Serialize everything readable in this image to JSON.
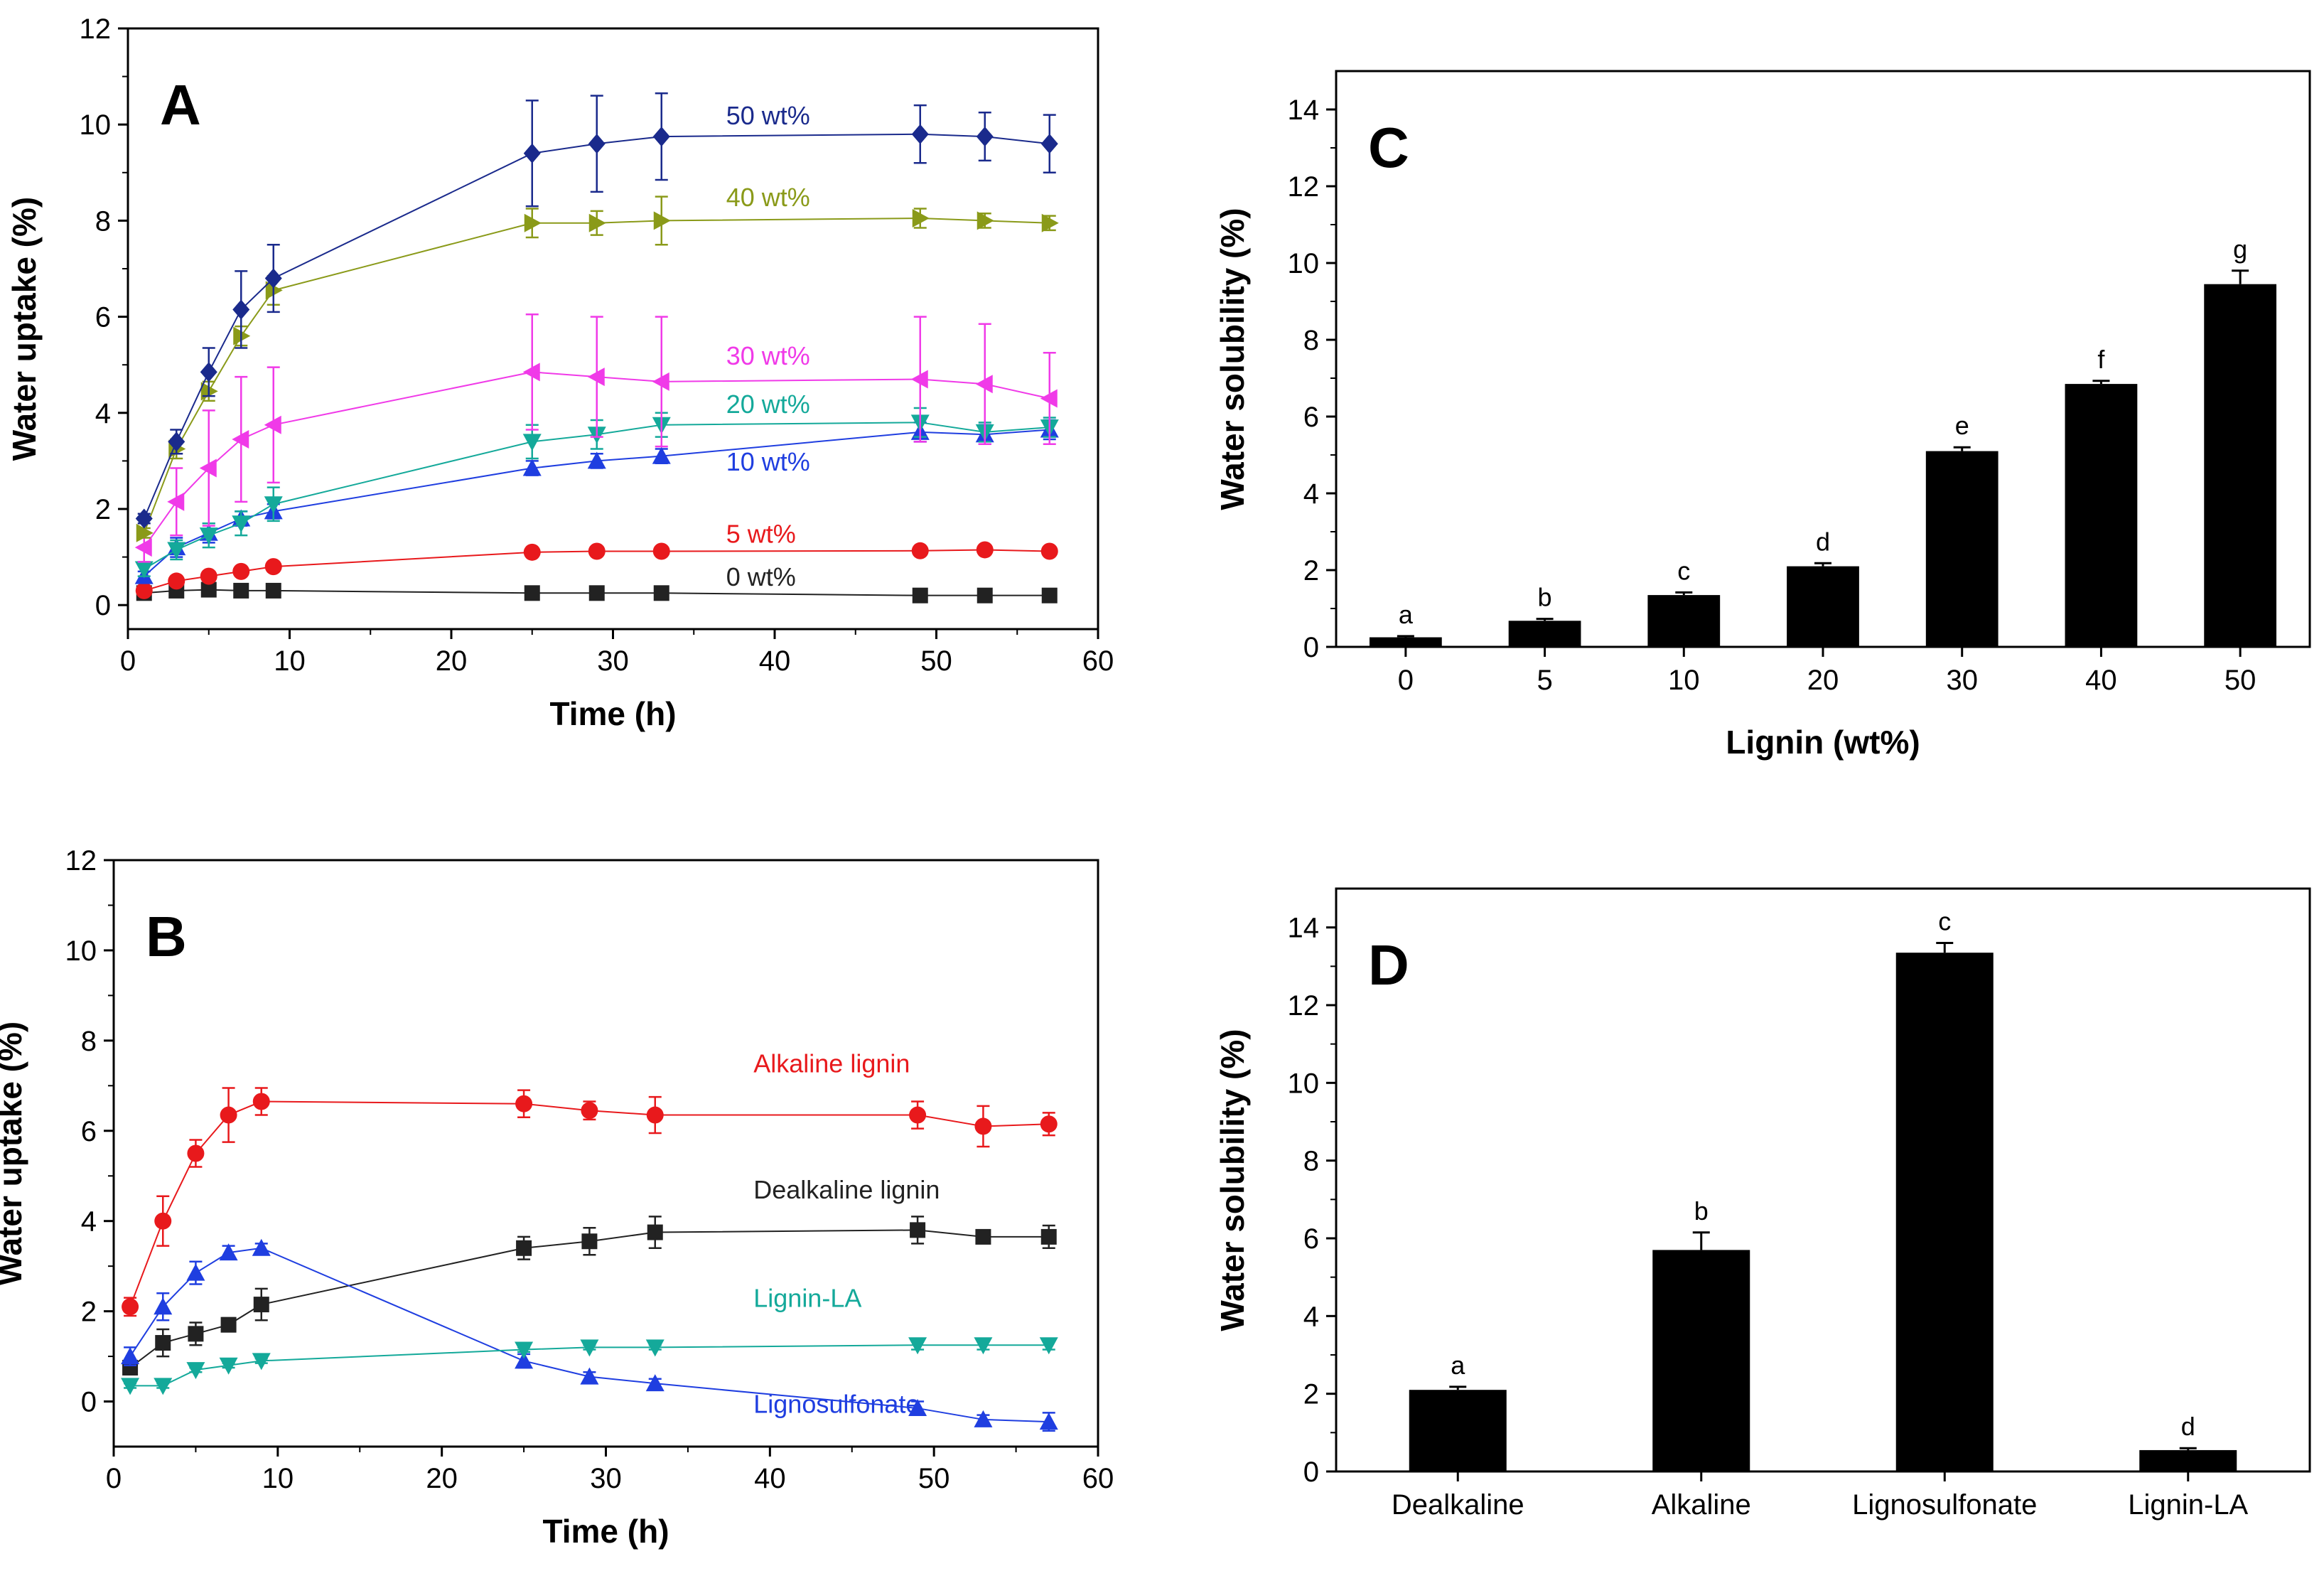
{
  "chart_data": [
    {
      "panel": "A",
      "type": "line",
      "xlabel": "Time (h)",
      "ylabel": "Water uptake (%)",
      "xlim": [
        0,
        60
      ],
      "ylim": [
        -0.5,
        12
      ],
      "xticks": [
        0,
        10,
        20,
        30,
        40,
        50,
        60
      ],
      "yticks": [
        0,
        2,
        4,
        6,
        8,
        10,
        12
      ],
      "x": [
        1,
        3,
        5,
        7,
        9,
        25,
        29,
        33,
        49,
        53,
        57
      ],
      "series": [
        {
          "name": "0 wt%",
          "color": "#222222",
          "marker": "square",
          "values": [
            0.25,
            0.3,
            0.32,
            0.3,
            0.3,
            0.25,
            0.25,
            0.25,
            0.2,
            0.2,
            0.2
          ],
          "errors": [
            0.05,
            0.05,
            0.05,
            0.05,
            0.05,
            0.05,
            0.05,
            0.05,
            0.05,
            0.05,
            0.05
          ]
        },
        {
          "name": "5 wt%",
          "color": "#e8191c",
          "marker": "circle",
          "values": [
            0.3,
            0.5,
            0.6,
            0.7,
            0.8,
            1.1,
            1.12,
            1.12,
            1.13,
            1.15,
            1.12
          ],
          "errors": [
            0.05,
            0.05,
            0.05,
            0.05,
            0.05,
            0.05,
            0.05,
            0.05,
            0.05,
            0.05,
            0.05
          ]
        },
        {
          "name": "10 wt%",
          "color": "#1f3ee0",
          "marker": "triangle-up",
          "values": [
            0.6,
            1.2,
            1.5,
            1.8,
            1.95,
            2.85,
            3.0,
            3.1,
            3.6,
            3.55,
            3.65
          ],
          "errors": [
            0.1,
            0.2,
            0.2,
            0.15,
            0.15,
            0.15,
            0.15,
            0.15,
            0.2,
            0.2,
            0.2
          ]
        },
        {
          "name": "20 wt%",
          "color": "#14a99a",
          "marker": "triangle-down",
          "values": [
            0.75,
            1.15,
            1.45,
            1.7,
            2.1,
            3.4,
            3.55,
            3.75,
            3.8,
            3.6,
            3.7
          ],
          "errors": [
            0.15,
            0.2,
            0.25,
            0.25,
            0.35,
            0.35,
            0.3,
            0.25,
            0.3,
            0.2,
            0.2
          ]
        },
        {
          "name": "30 wt%",
          "color": "#f03ae8",
          "marker": "triangle-left",
          "values": [
            1.2,
            2.15,
            2.85,
            3.45,
            3.75,
            4.85,
            4.75,
            4.65,
            4.7,
            4.6,
            4.3
          ],
          "errors": [
            0.3,
            0.7,
            1.2,
            1.3,
            1.2,
            1.2,
            1.25,
            1.35,
            1.3,
            1.25,
            0.95
          ]
        },
        {
          "name": "40 wt%",
          "color": "#8a9a19",
          "marker": "triangle-right",
          "values": [
            1.5,
            3.25,
            4.45,
            5.6,
            6.55,
            7.95,
            7.95,
            8.0,
            8.05,
            8.0,
            7.95
          ],
          "errors": [
            0.1,
            0.2,
            0.2,
            0.2,
            0.3,
            0.3,
            0.25,
            0.5,
            0.2,
            0.15,
            0.15
          ]
        },
        {
          "name": "50 wt%",
          "color": "#1a2a8c",
          "marker": "diamond",
          "values": [
            1.8,
            3.4,
            4.85,
            6.15,
            6.8,
            9.4,
            9.6,
            9.75,
            9.8,
            9.75,
            9.6
          ],
          "errors": [
            0.1,
            0.25,
            0.5,
            0.8,
            0.7,
            1.1,
            1.0,
            0.9,
            0.6,
            0.5,
            0.6
          ]
        }
      ],
      "annotations": [
        {
          "text": "50 wt%",
          "color": "#1a2a8c",
          "x": 37,
          "y": 10.0
        },
        {
          "text": "40 wt%",
          "color": "#8a9a19",
          "x": 37,
          "y": 8.3
        },
        {
          "text": "30 wt%",
          "color": "#f03ae8",
          "x": 37,
          "y": 5.0
        },
        {
          "text": "20 wt%",
          "color": "#14a99a",
          "x": 37,
          "y": 4.0
        },
        {
          "text": "10 wt%",
          "color": "#1f3ee0",
          "x": 37,
          "y": 2.8
        },
        {
          "text": "5 wt%",
          "color": "#e8191c",
          "x": 37,
          "y": 1.3
        },
        {
          "text": "0 wt%",
          "color": "#222222",
          "x": 37,
          "y": 0.4
        }
      ]
    },
    {
      "panel": "B",
      "type": "line",
      "xlabel": "Time (h)",
      "ylabel": "Water uptake (%)",
      "xlim": [
        0,
        60
      ],
      "ylim": [
        -1,
        12
      ],
      "xticks": [
        0,
        10,
        20,
        30,
        40,
        50,
        60
      ],
      "yticks": [
        0,
        2,
        4,
        6,
        8,
        10,
        12
      ],
      "x": [
        1,
        3,
        5,
        7,
        9,
        25,
        29,
        33,
        49,
        53,
        57
      ],
      "series": [
        {
          "name": "Alkaline lignin",
          "color": "#e8191c",
          "marker": "circle",
          "values": [
            2.1,
            4.0,
            5.5,
            6.35,
            6.65,
            6.6,
            6.45,
            6.35,
            6.35,
            6.1,
            6.15
          ],
          "errors": [
            0.2,
            0.55,
            0.3,
            0.6,
            0.3,
            0.3,
            0.2,
            0.4,
            0.3,
            0.45,
            0.25
          ]
        },
        {
          "name": "Dealkaline lignin",
          "color": "#222222",
          "marker": "square",
          "values": [
            0.75,
            1.3,
            1.5,
            1.7,
            2.15,
            3.4,
            3.55,
            3.75,
            3.8,
            3.65,
            3.65
          ],
          "errors": [
            0.15,
            0.3,
            0.25,
            0.15,
            0.35,
            0.25,
            0.3,
            0.35,
            0.3,
            0.1,
            0.25
          ]
        },
        {
          "name": "Lignosulfonate",
          "color": "#1f3ee0",
          "marker": "triangle-up",
          "values": [
            1.0,
            2.1,
            2.85,
            3.3,
            3.4,
            0.9,
            0.55,
            0.4,
            -0.15,
            -0.4,
            -0.45
          ],
          "errors": [
            0.2,
            0.3,
            0.25,
            0.15,
            0.1,
            0.15,
            0.1,
            0.1,
            0.15,
            0.1,
            0.2
          ]
        },
        {
          "name": "Lignin-LA",
          "color": "#14a99a",
          "marker": "triangle-down",
          "values": [
            0.35,
            0.35,
            0.7,
            0.8,
            0.9,
            1.15,
            1.2,
            1.2,
            1.25,
            1.25,
            1.25
          ],
          "errors": [
            0.05,
            0.05,
            0.05,
            0.05,
            0.05,
            0.05,
            0.05,
            0.05,
            0.1,
            0.1,
            0.1
          ]
        }
      ],
      "annotations": [
        {
          "text": "Alkaline lignin",
          "color": "#e8191c",
          "x": 39,
          "y": 7.3
        },
        {
          "text": "Dealkaline lignin",
          "color": "#222222",
          "x": 39,
          "y": 4.5
        },
        {
          "text": "Lignin-LA",
          "color": "#14a99a",
          "x": 39,
          "y": 2.1
        },
        {
          "text": "Lignosulfonate",
          "color": "#1f3ee0",
          "x": 39,
          "y": -0.25
        }
      ]
    },
    {
      "panel": "C",
      "type": "bar",
      "xlabel": "Lignin (wt%)",
      "ylabel": "Water solubility (%)",
      "ylim": [
        0,
        15
      ],
      "yticks": [
        0,
        2,
        4,
        6,
        8,
        10,
        12,
        14
      ],
      "categories": [
        "0",
        "5",
        "10",
        "20",
        "30",
        "40",
        "50"
      ],
      "values": [
        0.25,
        0.68,
        1.35,
        2.1,
        5.1,
        6.85,
        9.45
      ],
      "errors": [
        0.03,
        0.05,
        0.07,
        0.08,
        0.1,
        0.08,
        0.35
      ],
      "labels": [
        "a",
        "b",
        "c",
        "d",
        "e",
        "f",
        "g"
      ]
    },
    {
      "panel": "D",
      "type": "bar",
      "xlabel": "",
      "ylabel": "Water solubility (%)",
      "ylim": [
        0,
        15
      ],
      "yticks": [
        0,
        2,
        4,
        6,
        8,
        10,
        12,
        14
      ],
      "categories": [
        "Dealkaline",
        "Alkaline",
        "Lignosulfonate",
        "Lignin-LA"
      ],
      "values": [
        2.1,
        5.7,
        13.35,
        0.55
      ],
      "errors": [
        0.08,
        0.45,
        0.25,
        0.05
      ],
      "labels": [
        "a",
        "b",
        "c",
        "d"
      ]
    }
  ]
}
